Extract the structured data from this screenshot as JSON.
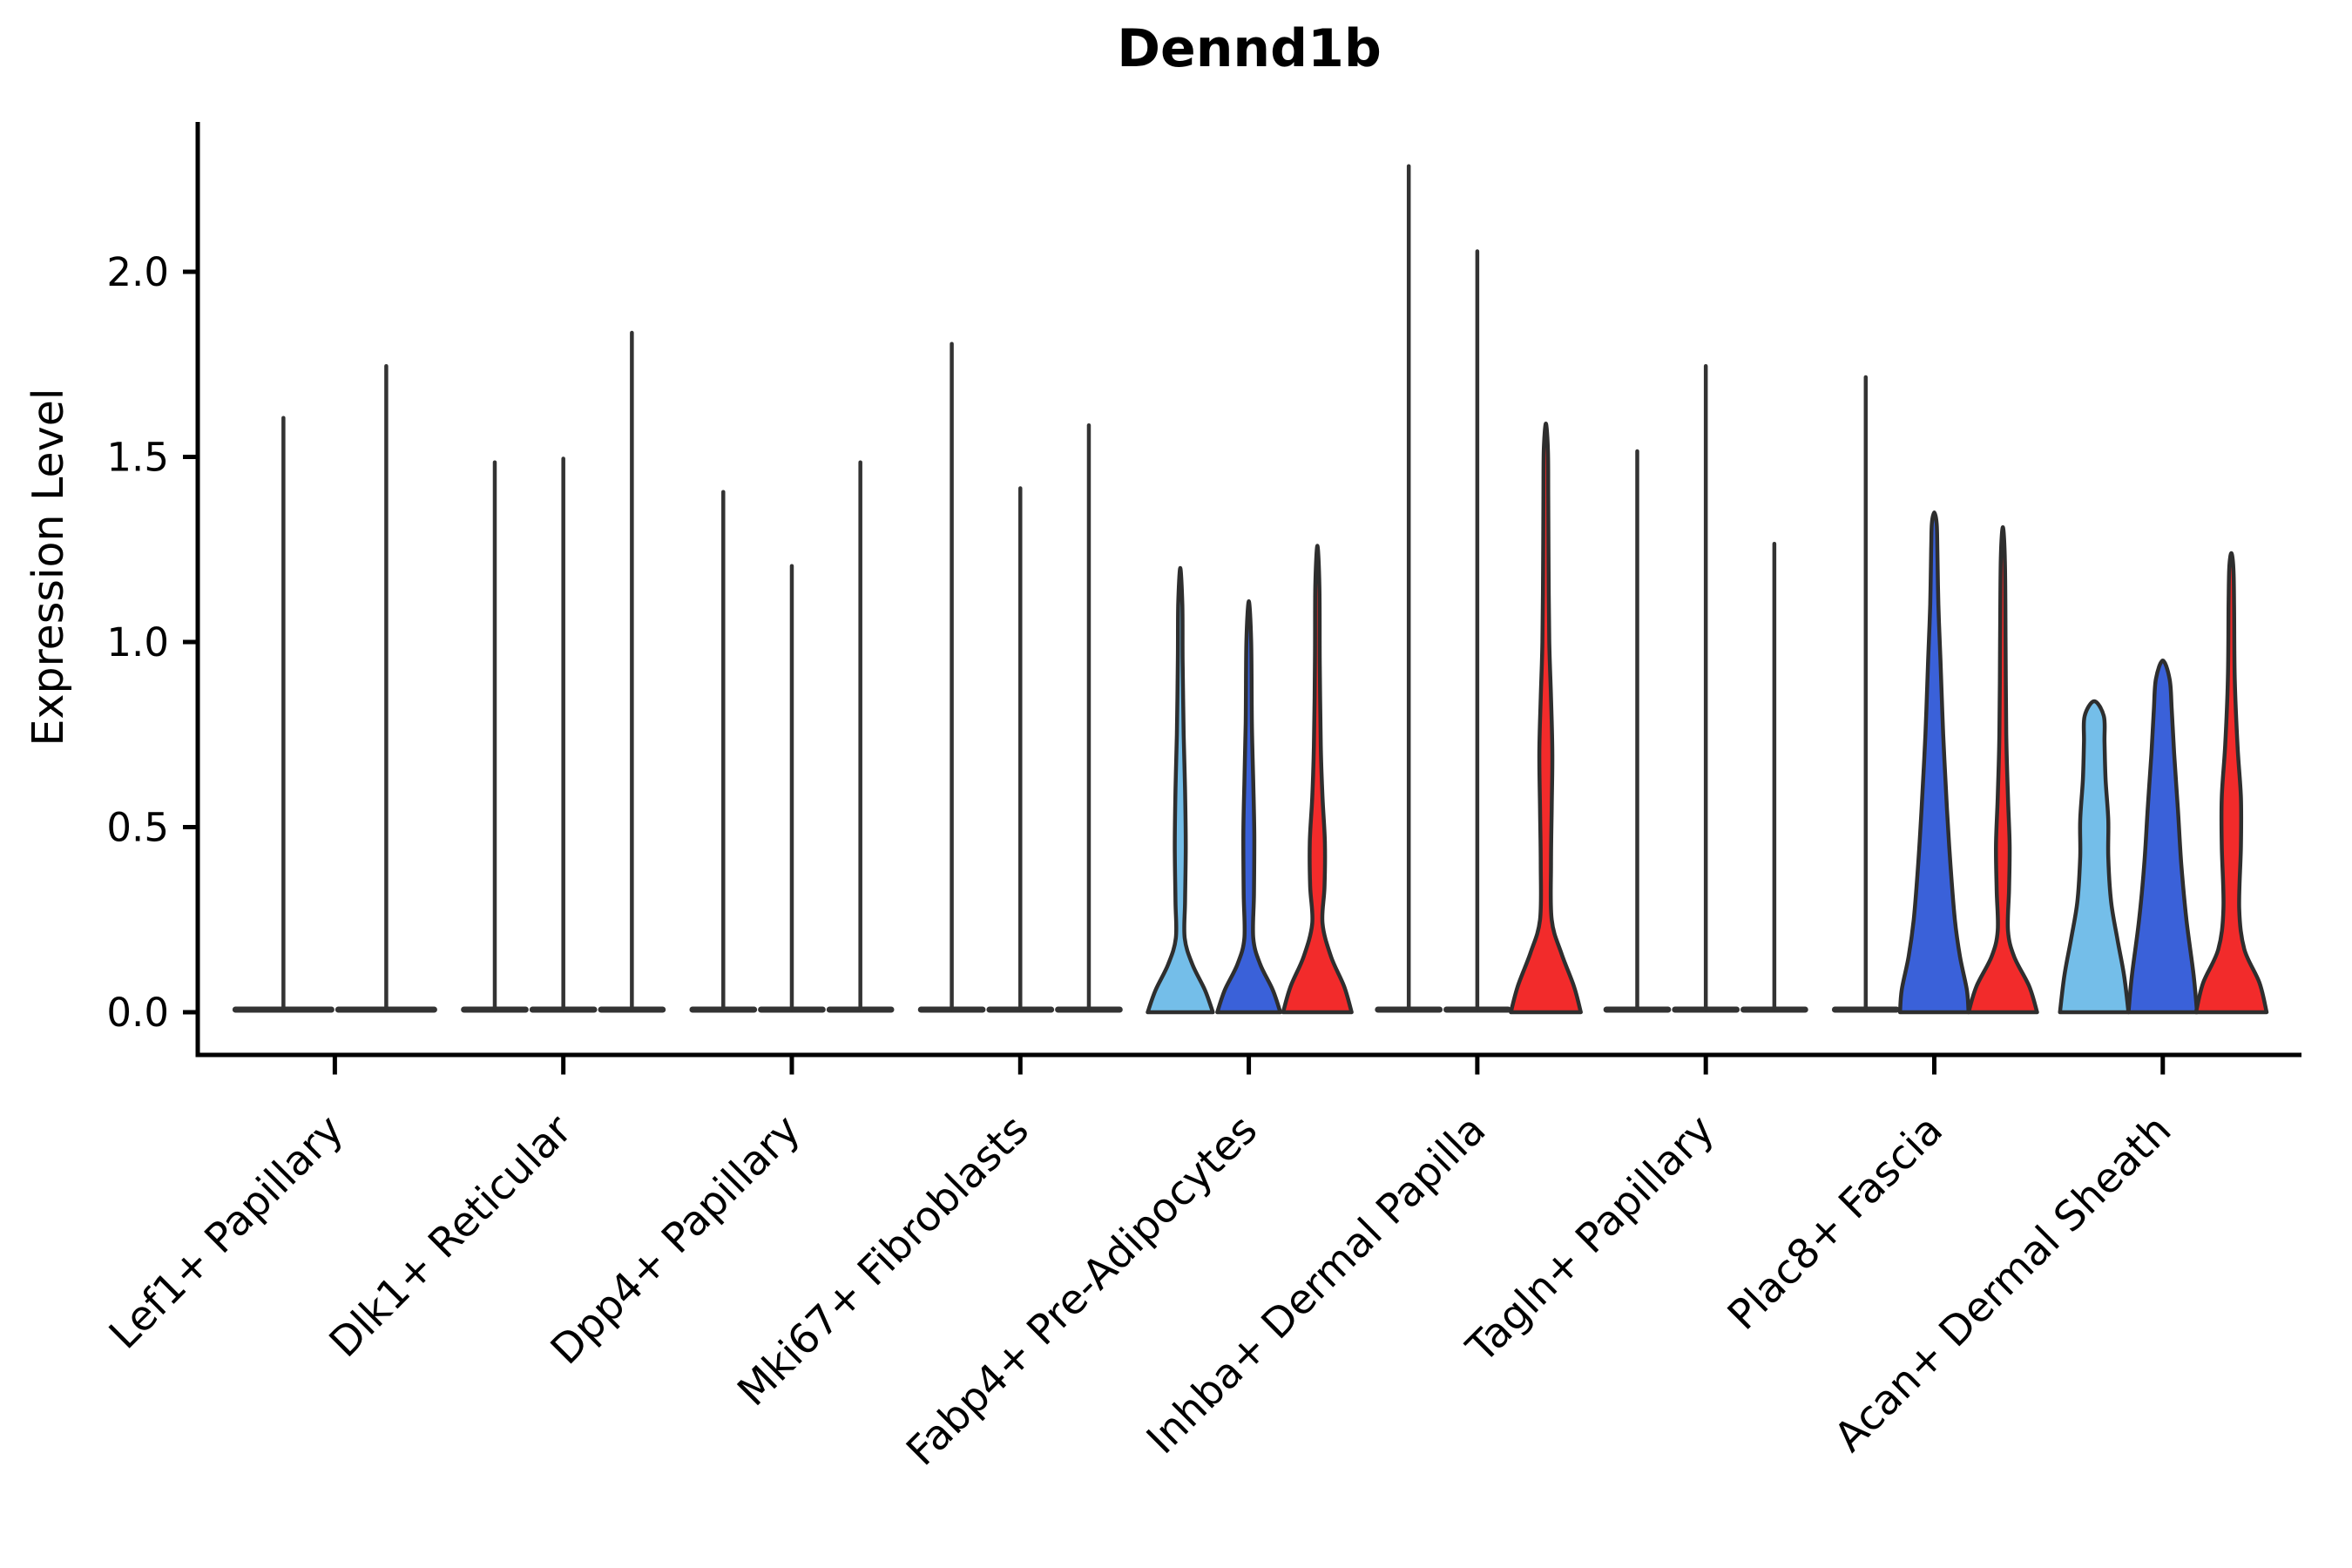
{
  "title": "Dennd1b",
  "ylabel": "Expression Level",
  "chart_data": {
    "type": "violin",
    "title": "Dennd1b",
    "xlabel": "",
    "ylabel": "Expression Level",
    "yticks": [
      "0.0",
      "0.5",
      "1.0",
      "1.5",
      "2.0"
    ],
    "ylim": [
      -0.12,
      2.41
    ],
    "grid": "off",
    "legend": "none",
    "categories": [
      "Lef1+ Papillary",
      "Dlk1+ Reticular",
      "Dpp4+ Papillary",
      "Mki67+ Fibroblasts",
      "Fabp4+ Pre-Adipocytes",
      "Inhba+ Dermal Papilla",
      "Tagln+ Papillary",
      "Plac8+ Fascia",
      "Acan+ Dermal Sheath"
    ],
    "palette": {
      "light_blue": "#74BEE9",
      "dark_blue": "#3A61D9",
      "red": "#F22B2B",
      "spike": "#333333",
      "outline": "#2E2E2E",
      "axis": "#000000"
    },
    "groups": [
      {
        "category": "Lef1+ Papillary",
        "violins": [
          {
            "fill": "spike",
            "shape": "spike",
            "max": 1.61,
            "offset_u": -0.225,
            "halfwidth_u": 0.225
          },
          {
            "fill": "spike",
            "shape": "spike",
            "max": 1.75,
            "offset_u": 0.225,
            "halfwidth_u": 0.225
          }
        ]
      },
      {
        "category": "Dlk1+ Reticular",
        "violins": [
          {
            "fill": "spike",
            "shape": "spike",
            "max": 1.49,
            "offset_u": -0.3,
            "halfwidth_u": 0.15
          },
          {
            "fill": "spike",
            "shape": "spike",
            "max": 1.5,
            "offset_u": 0.0,
            "halfwidth_u": 0.15
          },
          {
            "fill": "spike",
            "shape": "spike",
            "max": 1.84,
            "offset_u": 0.3,
            "halfwidth_u": 0.15
          }
        ]
      },
      {
        "category": "Dpp4+ Papillary",
        "violins": [
          {
            "fill": "spike",
            "shape": "spike",
            "max": 1.41,
            "offset_u": -0.3,
            "halfwidth_u": 0.15
          },
          {
            "fill": "spike",
            "shape": "spike",
            "max": 1.21,
            "offset_u": 0.0,
            "halfwidth_u": 0.15
          },
          {
            "fill": "spike",
            "shape": "spike",
            "max": 1.49,
            "offset_u": 0.3,
            "halfwidth_u": 0.15
          }
        ]
      },
      {
        "category": "Mki67+ Fibroblasts",
        "violins": [
          {
            "fill": "spike",
            "shape": "spike",
            "max": 1.81,
            "offset_u": -0.3,
            "halfwidth_u": 0.15
          },
          {
            "fill": "spike",
            "shape": "spike",
            "max": 1.42,
            "offset_u": 0.0,
            "halfwidth_u": 0.15
          },
          {
            "fill": "spike",
            "shape": "spike",
            "max": 1.59,
            "offset_u": 0.3,
            "halfwidth_u": 0.15
          }
        ]
      },
      {
        "category": "Fabp4+ Pre-Adipocytes",
        "violins": [
          {
            "fill": "light_blue",
            "shape": "body",
            "max": 1.2,
            "offset_u": -0.3,
            "halfwidth_u": 0.15,
            "profile": [
              [
                0,
                0.95
              ],
              [
                0.06,
                0.72
              ],
              [
                0.13,
                0.35
              ],
              [
                0.2,
                0.13
              ],
              [
                0.3,
                0.14
              ],
              [
                0.45,
                0.16
              ],
              [
                0.6,
                0.14
              ],
              [
                0.75,
                0.1
              ],
              [
                0.95,
                0.07
              ],
              [
                1.1,
                0.06
              ],
              [
                1.2,
                0
              ]
            ]
          },
          {
            "fill": "dark_blue",
            "shape": "body",
            "max": 1.11,
            "offset_u": 0.0,
            "halfwidth_u": 0.15,
            "profile": [
              [
                0,
                0.92
              ],
              [
                0.06,
                0.7
              ],
              [
                0.13,
                0.33
              ],
              [
                0.2,
                0.13
              ],
              [
                0.32,
                0.15
              ],
              [
                0.48,
                0.16
              ],
              [
                0.62,
                0.13
              ],
              [
                0.78,
                0.09
              ],
              [
                1.0,
                0.07
              ],
              [
                1.11,
                0
              ]
            ]
          },
          {
            "fill": "red",
            "shape": "body",
            "max": 1.26,
            "offset_u": 0.3,
            "halfwidth_u": 0.15,
            "profile": [
              [
                0,
                1.0
              ],
              [
                0.07,
                0.78
              ],
              [
                0.15,
                0.4
              ],
              [
                0.24,
                0.15
              ],
              [
                0.34,
                0.21
              ],
              [
                0.46,
                0.22
              ],
              [
                0.58,
                0.15
              ],
              [
                0.72,
                0.1
              ],
              [
                0.95,
                0.07
              ],
              [
                1.15,
                0.06
              ],
              [
                1.26,
                0
              ]
            ]
          }
        ]
      },
      {
        "category": "Inhba+ Dermal Papilla",
        "violins": [
          {
            "fill": "spike",
            "shape": "spike",
            "max": 2.29,
            "offset_u": -0.3,
            "halfwidth_u": 0.15
          },
          {
            "fill": "spike",
            "shape": "spike",
            "max": 2.06,
            "offset_u": 0.0,
            "halfwidth_u": 0.15
          },
          {
            "fill": "red",
            "shape": "body",
            "max": 1.59,
            "offset_u": 0.3,
            "halfwidth_u": 0.15,
            "profile": [
              [
                0,
                1.02
              ],
              [
                0.07,
                0.82
              ],
              [
                0.16,
                0.45
              ],
              [
                0.25,
                0.17
              ],
              [
                0.4,
                0.15
              ],
              [
                0.55,
                0.17
              ],
              [
                0.7,
                0.19
              ],
              [
                0.85,
                0.15
              ],
              [
                1.0,
                0.1
              ],
              [
                1.2,
                0.08
              ],
              [
                1.4,
                0.07
              ],
              [
                1.52,
                0.06
              ],
              [
                1.59,
                0
              ]
            ]
          }
        ]
      },
      {
        "category": "Tagln+ Papillary",
        "violins": [
          {
            "fill": "spike",
            "shape": "spike",
            "max": 1.52,
            "offset_u": -0.3,
            "halfwidth_u": 0.15
          },
          {
            "fill": "spike",
            "shape": "spike",
            "max": 1.75,
            "offset_u": 0.0,
            "halfwidth_u": 0.15
          },
          {
            "fill": "spike",
            "shape": "spike",
            "max": 1.27,
            "offset_u": 0.3,
            "halfwidth_u": 0.15
          }
        ]
      },
      {
        "category": "Plac8+ Fascia",
        "violins": [
          {
            "fill": "spike",
            "shape": "spike",
            "max": 1.72,
            "offset_u": -0.3,
            "halfwidth_u": 0.15
          },
          {
            "fill": "dark_blue",
            "shape": "body",
            "max": 1.35,
            "offset_u": 0.0,
            "halfwidth_u": 0.15,
            "profile": [
              [
                0,
                1.0
              ],
              [
                0.06,
                0.95
              ],
              [
                0.15,
                0.75
              ],
              [
                0.25,
                0.6
              ],
              [
                0.4,
                0.47
              ],
              [
                0.55,
                0.37
              ],
              [
                0.75,
                0.26
              ],
              [
                0.95,
                0.18
              ],
              [
                1.1,
                0.12
              ],
              [
                1.25,
                0.09
              ],
              [
                1.32,
                0.07
              ],
              [
                1.35,
                0
              ]
            ]
          },
          {
            "fill": "red",
            "shape": "body",
            "max": 1.31,
            "offset_u": 0.3,
            "halfwidth_u": 0.15,
            "profile": [
              [
                0,
                1.0
              ],
              [
                0.07,
                0.77
              ],
              [
                0.15,
                0.33
              ],
              [
                0.22,
                0.15
              ],
              [
                0.33,
                0.18
              ],
              [
                0.45,
                0.2
              ],
              [
                0.58,
                0.15
              ],
              [
                0.75,
                0.1
              ],
              [
                1.0,
                0.08
              ],
              [
                1.22,
                0.06
              ],
              [
                1.31,
                0
              ]
            ]
          }
        ]
      },
      {
        "category": "Acan+ Dermal Sheath",
        "violins": [
          {
            "fill": "light_blue",
            "shape": "body",
            "max": 0.84,
            "offset_u": -0.3,
            "halfwidth_u": 0.15,
            "profile": [
              [
                0,
                1.0
              ],
              [
                0.1,
                0.87
              ],
              [
                0.2,
                0.67
              ],
              [
                0.3,
                0.49
              ],
              [
                0.42,
                0.41
              ],
              [
                0.52,
                0.41
              ],
              [
                0.63,
                0.33
              ],
              [
                0.73,
                0.3
              ],
              [
                0.8,
                0.28
              ],
              [
                0.84,
                0
              ]
            ]
          },
          {
            "fill": "dark_blue",
            "shape": "body",
            "max": 0.95,
            "offset_u": 0.0,
            "halfwidth_u": 0.15,
            "profile": [
              [
                0,
                1.0
              ],
              [
                0.1,
                0.9
              ],
              [
                0.25,
                0.69
              ],
              [
                0.4,
                0.54
              ],
              [
                0.55,
                0.44
              ],
              [
                0.7,
                0.33
              ],
              [
                0.82,
                0.26
              ],
              [
                0.9,
                0.2
              ],
              [
                0.95,
                0
              ]
            ]
          },
          {
            "fill": "red",
            "shape": "body",
            "max": 1.24,
            "offset_u": 0.3,
            "halfwidth_u": 0.15,
            "profile": [
              [
                0,
                1.03
              ],
              [
                0.08,
                0.82
              ],
              [
                0.17,
                0.38
              ],
              [
                0.28,
                0.23
              ],
              [
                0.45,
                0.28
              ],
              [
                0.58,
                0.28
              ],
              [
                0.72,
                0.18
              ],
              [
                0.9,
                0.1
              ],
              [
                1.1,
                0.08
              ],
              [
                1.2,
                0.06
              ],
              [
                1.24,
                0
              ]
            ]
          }
        ]
      }
    ]
  }
}
